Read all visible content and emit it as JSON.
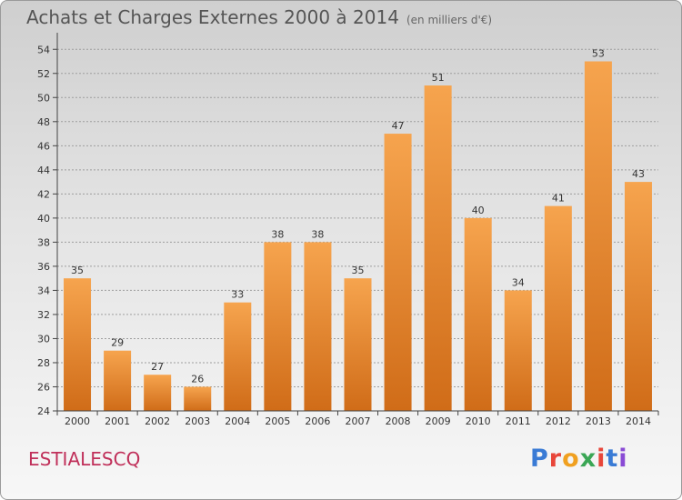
{
  "header": {
    "title": "Achats et Charges Externes 2000 à 2014",
    "unit": "(en milliers d'€)"
  },
  "footer": {
    "commune": "ESTIALESCQ",
    "brand": "Proxiti",
    "brand_colors": [
      "#3a7bd5",
      "#e8463a",
      "#f0a020",
      "#3aa655",
      "#e8463a",
      "#3a7bd5",
      "#8a4bd5"
    ]
  },
  "colors": {
    "bar_light": "#f6a44e",
    "bar_dark": "#d06c18",
    "axis": "#444444",
    "grid": "#9e9e9e"
  },
  "chart_data": {
    "type": "bar",
    "title": "Achats et Charges Externes 2000 à 2014",
    "xlabel": "",
    "ylabel": "",
    "categories": [
      "2000",
      "2001",
      "2002",
      "2003",
      "2004",
      "2005",
      "2006",
      "2007",
      "2008",
      "2009",
      "2010",
      "2011",
      "2012",
      "2013",
      "2014"
    ],
    "values": [
      35,
      29,
      27,
      26,
      33,
      38,
      38,
      35,
      47,
      51,
      40,
      34,
      41,
      53,
      43
    ],
    "ylim": [
      24,
      55
    ],
    "yticks": [
      24,
      26,
      28,
      30,
      32,
      34,
      36,
      38,
      40,
      42,
      44,
      46,
      48,
      50,
      52,
      54
    ],
    "grid": "horizontal dashed",
    "data_labels": true
  }
}
